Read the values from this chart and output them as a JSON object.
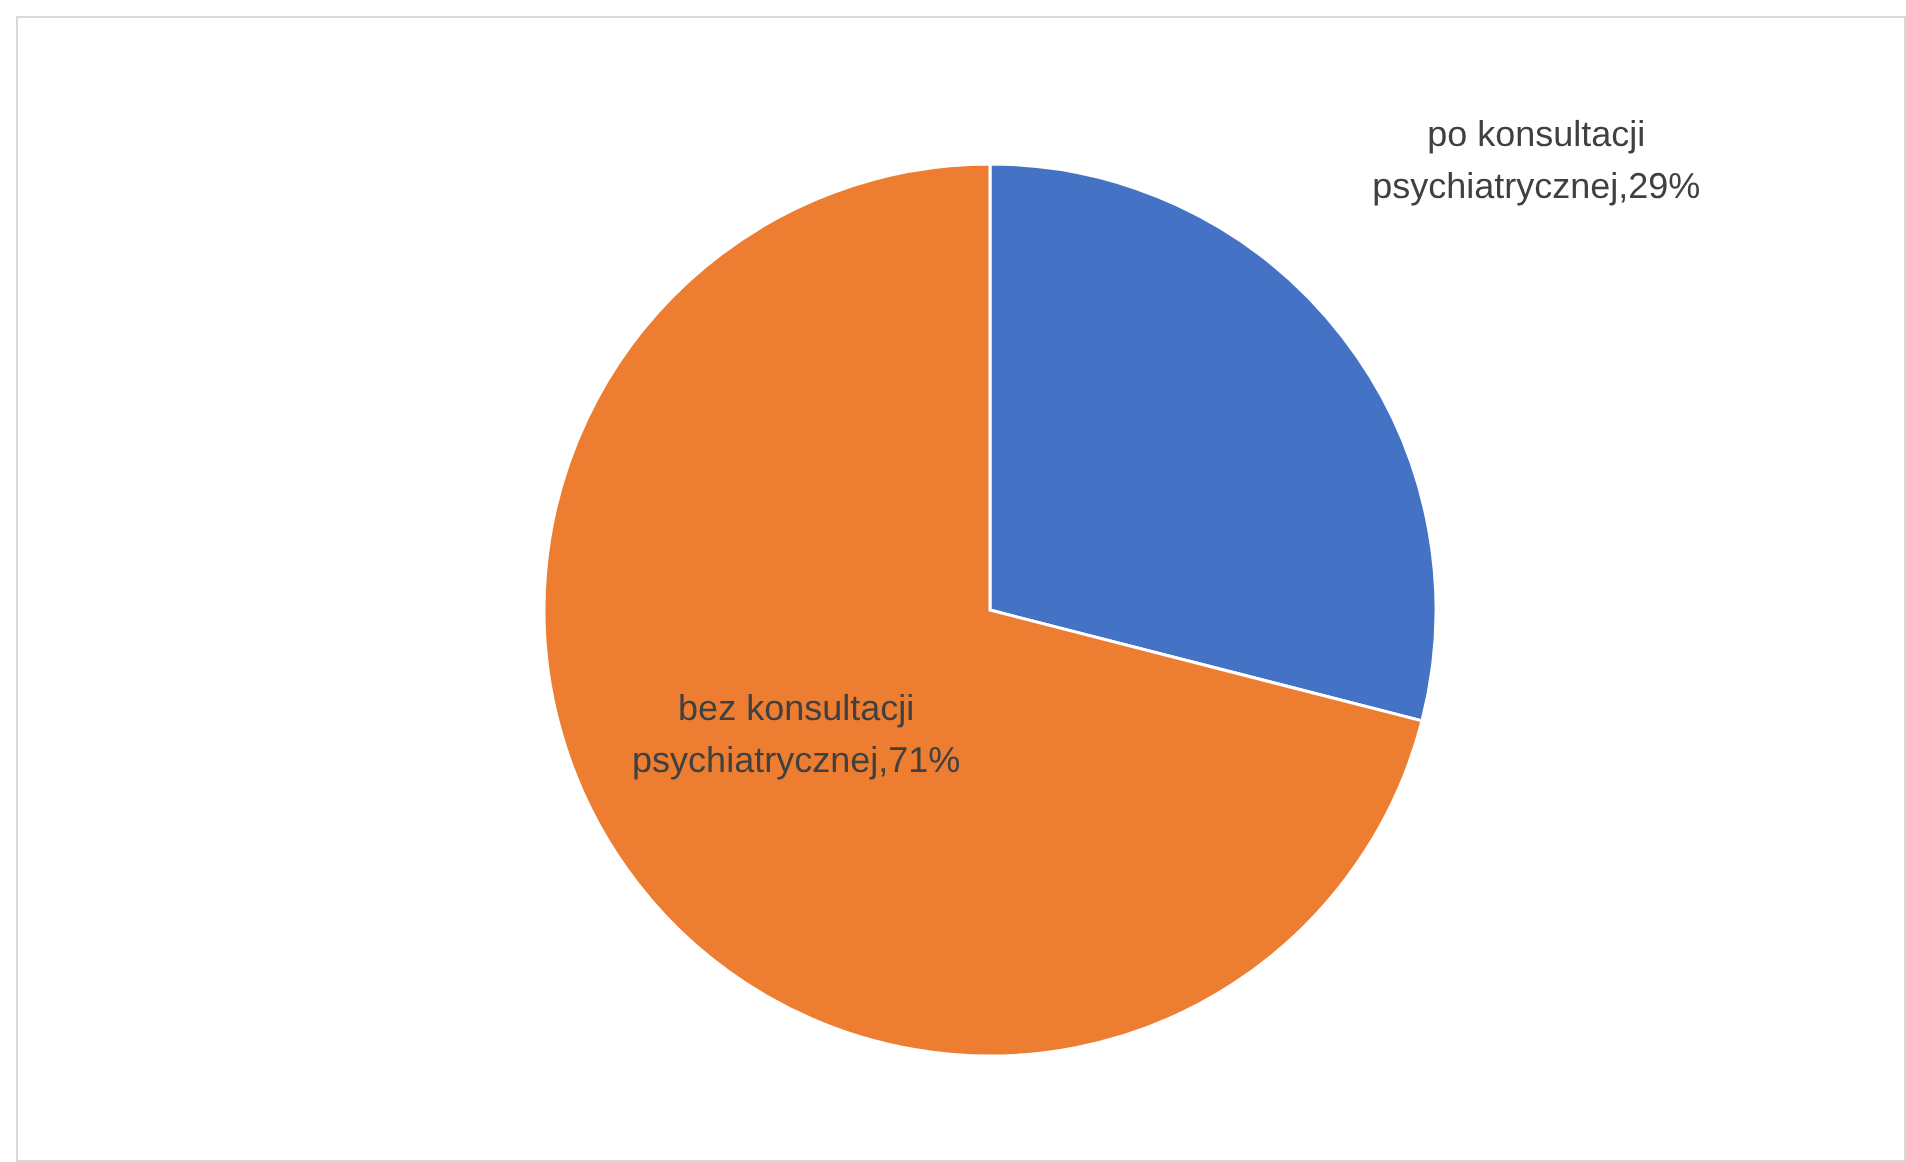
{
  "chart_data": {
    "type": "pie",
    "categories": [
      "po konsultacji psychiatrycznej",
      "bez konsultacji psychiatrycznej"
    ],
    "values": [
      29,
      71
    ],
    "colors": [
      "#4472c4",
      "#ed7d31"
    ],
    "value_labels": [
      ",29%",
      ",71%"
    ]
  }
}
